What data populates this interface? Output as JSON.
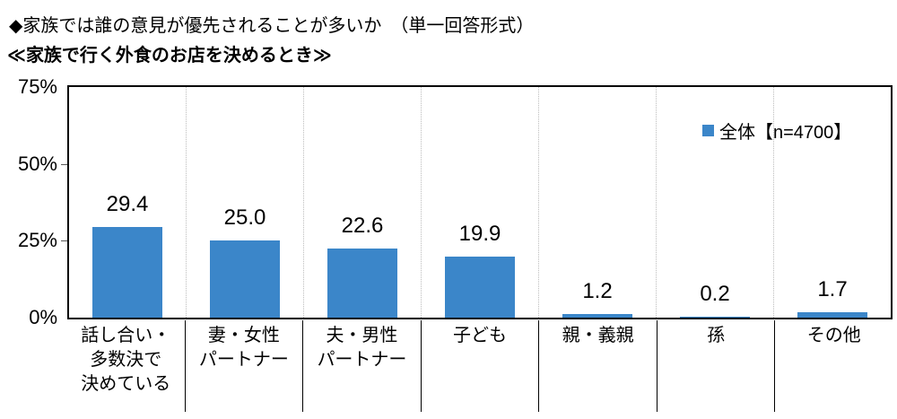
{
  "page": {
    "title": "◆家族では誰の意見が優先されることが多いか　（単一回答形式）",
    "subtitle": "≪家族で行く外食のお店を決めるとき≫"
  },
  "legend": {
    "label": "全体【n=4700】",
    "marker_color": "#3B86C9"
  },
  "chart_data": {
    "type": "bar",
    "title": "家族で行く外食のお店を決めるとき",
    "categories": [
      "話し合い・多数決で決めている",
      "妻・女性パートナー",
      "夫・男性パートナー",
      "子ども",
      "親・義親",
      "孫",
      "その他"
    ],
    "categories_multiline": [
      [
        "話し合い・",
        "多数決で",
        "決めている"
      ],
      [
        "妻・女性",
        "パートナー"
      ],
      [
        "夫・男性",
        "パートナー"
      ],
      [
        "子ども"
      ],
      [
        "親・義親"
      ],
      [
        "孫"
      ],
      [
        "その他"
      ]
    ],
    "series": [
      {
        "name": "全体【n=4700】",
        "values": [
          29.4,
          25.0,
          22.6,
          19.9,
          1.2,
          0.2,
          1.7
        ]
      }
    ],
    "xlabel": "",
    "ylabel": "",
    "ylim": [
      0,
      75
    ],
    "yticks": [
      0,
      25,
      50,
      75
    ],
    "ytick_suffix": "%",
    "value_label_decimals": 1,
    "bar_color": "#3B86C9",
    "grid": "vertical-dotted",
    "legend_position": "top-right-inside"
  }
}
